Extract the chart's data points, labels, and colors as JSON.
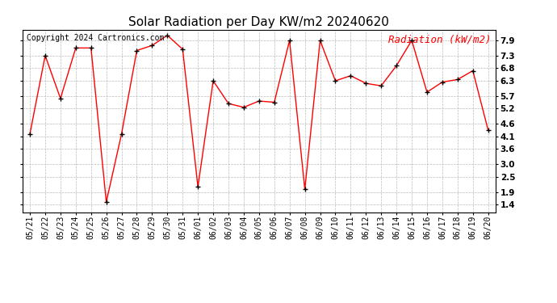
{
  "title": "Solar Radiation per Day KW/m2 20240620",
  "copyright": "Copyright 2024 Cartronics.com",
  "legend_label": "Radiation (kW/m2)",
  "dates": [
    "05/21",
    "05/22",
    "05/23",
    "05/24",
    "05/25",
    "05/26",
    "05/27",
    "05/28",
    "05/29",
    "05/30",
    "05/31",
    "06/01",
    "06/02",
    "06/03",
    "06/04",
    "06/05",
    "06/06",
    "06/07",
    "06/08",
    "06/09",
    "06/10",
    "06/11",
    "06/12",
    "06/13",
    "06/14",
    "06/15",
    "06/16",
    "06/17",
    "06/18",
    "06/19",
    "06/20"
  ],
  "values": [
    4.2,
    7.3,
    5.6,
    7.6,
    7.6,
    1.5,
    4.2,
    7.5,
    7.7,
    8.1,
    7.55,
    2.1,
    6.3,
    5.4,
    5.25,
    5.5,
    5.45,
    7.9,
    2.0,
    7.9,
    6.3,
    6.5,
    6.2,
    6.1,
    6.9,
    7.9,
    5.85,
    6.25,
    6.35,
    6.7,
    4.35
  ],
  "yticks": [
    1.4,
    1.9,
    2.5,
    3.0,
    3.6,
    4.1,
    4.6,
    5.2,
    5.7,
    6.3,
    6.8,
    7.3,
    7.9
  ],
  "ylim": [
    1.1,
    8.3
  ],
  "line_color": "red",
  "marker_color": "black",
  "background_color": "white",
  "grid_color": "#bbbbbb",
  "title_fontsize": 11,
  "copyright_fontsize": 7,
  "legend_fontsize": 9,
  "tick_fontsize": 7,
  "ytick_fontsize": 7.5
}
